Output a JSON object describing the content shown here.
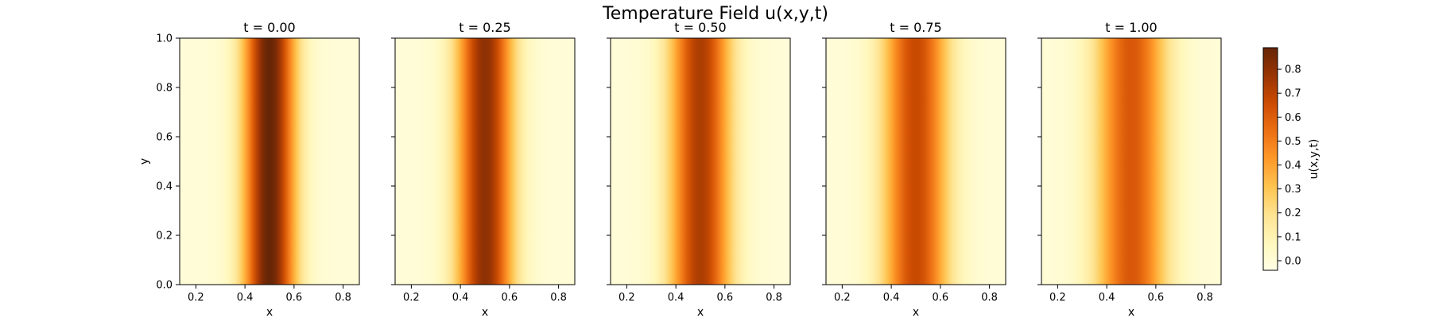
{
  "chart_data": {
    "type": "heatmap",
    "title": "Temperature Field u(x,y,t)",
    "colormap": "YlOrBr",
    "panels": [
      {
        "title": "t = 0.00",
        "t": 0.0,
        "peak": 0.89,
        "sigma": 0.075
      },
      {
        "title": "t = 0.25",
        "t": 0.25,
        "peak": 0.8,
        "sigma": 0.081
      },
      {
        "title": "t = 0.50",
        "t": 0.5,
        "peak": 0.73,
        "sigma": 0.088
      },
      {
        "title": "t = 0.75",
        "t": 0.75,
        "peak": 0.67,
        "sigma": 0.094
      },
      {
        "title": "t = 1.00",
        "t": 1.0,
        "peak": 0.62,
        "sigma": 0.101
      }
    ],
    "field_description": "u varies only along x; Gaussian ridge centered at x = 0.5, uniform in y",
    "center_x": 0.5,
    "xlabel": "x",
    "ylabel": "y",
    "xlim": [
      0.134,
      0.866
    ],
    "ylim": [
      0.0,
      1.0
    ],
    "xticks": [
      "0.2",
      "0.4",
      "0.6",
      "0.8"
    ],
    "yticks": [
      "0.0",
      "0.2",
      "0.4",
      "0.6",
      "0.8",
      "1.0"
    ],
    "colorbar": {
      "label": "u(x,y,t)",
      "min": -0.04,
      "max": 0.89,
      "ticks": [
        "0.0",
        "0.1",
        "0.2",
        "0.3",
        "0.4",
        "0.5",
        "0.6",
        "0.7",
        "0.8"
      ]
    }
  }
}
